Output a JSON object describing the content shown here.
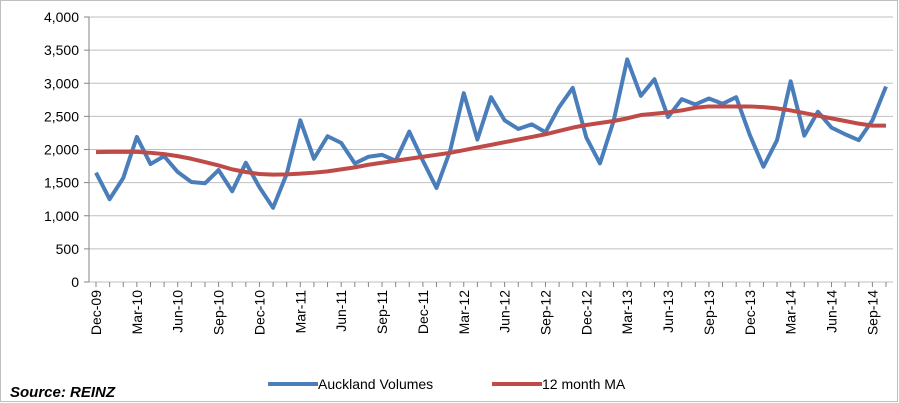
{
  "chart_data": {
    "type": "line",
    "source": "Source: REINZ",
    "categories": [
      "Dec-09",
      null,
      null,
      "Mar-10",
      null,
      null,
      "Jun-10",
      null,
      null,
      "Sep-10",
      null,
      null,
      "Dec-10",
      null,
      null,
      "Mar-11",
      null,
      null,
      "Jun-11",
      null,
      null,
      "Sep-11",
      null,
      null,
      "Dec-11",
      null,
      null,
      "Mar-12",
      null,
      null,
      "Jun-12",
      null,
      null,
      "Sep-12",
      null,
      null,
      "Dec-12",
      null,
      null,
      "Mar-13",
      null,
      null,
      "Jun-13",
      null,
      null,
      "Sep-13",
      null,
      null,
      "Dec-13",
      null,
      null,
      "Mar-14",
      null,
      null,
      "Jun-14",
      null,
      null,
      "Sep-14",
      null
    ],
    "series": [
      {
        "name": "Auckland Volumes",
        "color": "#4a7ebb",
        "width": 4,
        "values": [
          1650,
          1250,
          1570,
          2190,
          1780,
          1900,
          1660,
          1510,
          1490,
          1690,
          1370,
          1800,
          1430,
          1120,
          1630,
          2440,
          1860,
          2200,
          2100,
          1790,
          1890,
          1920,
          1830,
          2270,
          1830,
          1420,
          1980,
          2850,
          2150,
          2790,
          2440,
          2310,
          2380,
          2260,
          2640,
          2930,
          2180,
          1790,
          2430,
          3360,
          2810,
          3060,
          2490,
          2760,
          2680,
          2770,
          2690,
          2790,
          2220,
          1740,
          2140,
          3030,
          2210,
          2570,
          2330,
          2230,
          2140,
          2440,
          2950
        ]
      },
      {
        "name": "12 month MA",
        "color": "#be4b48",
        "width": 4,
        "values": [
          1960,
          1965,
          1965,
          1965,
          1950,
          1930,
          1900,
          1860,
          1810,
          1760,
          1700,
          1660,
          1630,
          1620,
          1625,
          1635,
          1650,
          1670,
          1700,
          1730,
          1770,
          1800,
          1830,
          1860,
          1890,
          1920,
          1950,
          1990,
          2030,
          2070,
          2110,
          2150,
          2190,
          2230,
          2280,
          2330,
          2370,
          2400,
          2430,
          2470,
          2520,
          2540,
          2560,
          2590,
          2630,
          2650,
          2650,
          2650,
          2650,
          2640,
          2620,
          2590,
          2550,
          2510,
          2470,
          2430,
          2390,
          2360,
          2360
        ]
      }
    ],
    "ylim": [
      0,
      4000
    ],
    "yticks": [
      0,
      500,
      {
        "value": 1000,
        "label": "1,000"
      },
      {
        "value": 1500,
        "label": "1,500"
      },
      {
        "value": 2000,
        "label": "2,000"
      },
      {
        "value": 2500,
        "label": "2,500"
      },
      {
        "value": 3000,
        "label": "3,000"
      },
      {
        "value": 3500,
        "label": "3,500"
      },
      {
        "value": 4000,
        "label": "4,000"
      }
    ],
    "grid": true,
    "legend": "bottom"
  }
}
